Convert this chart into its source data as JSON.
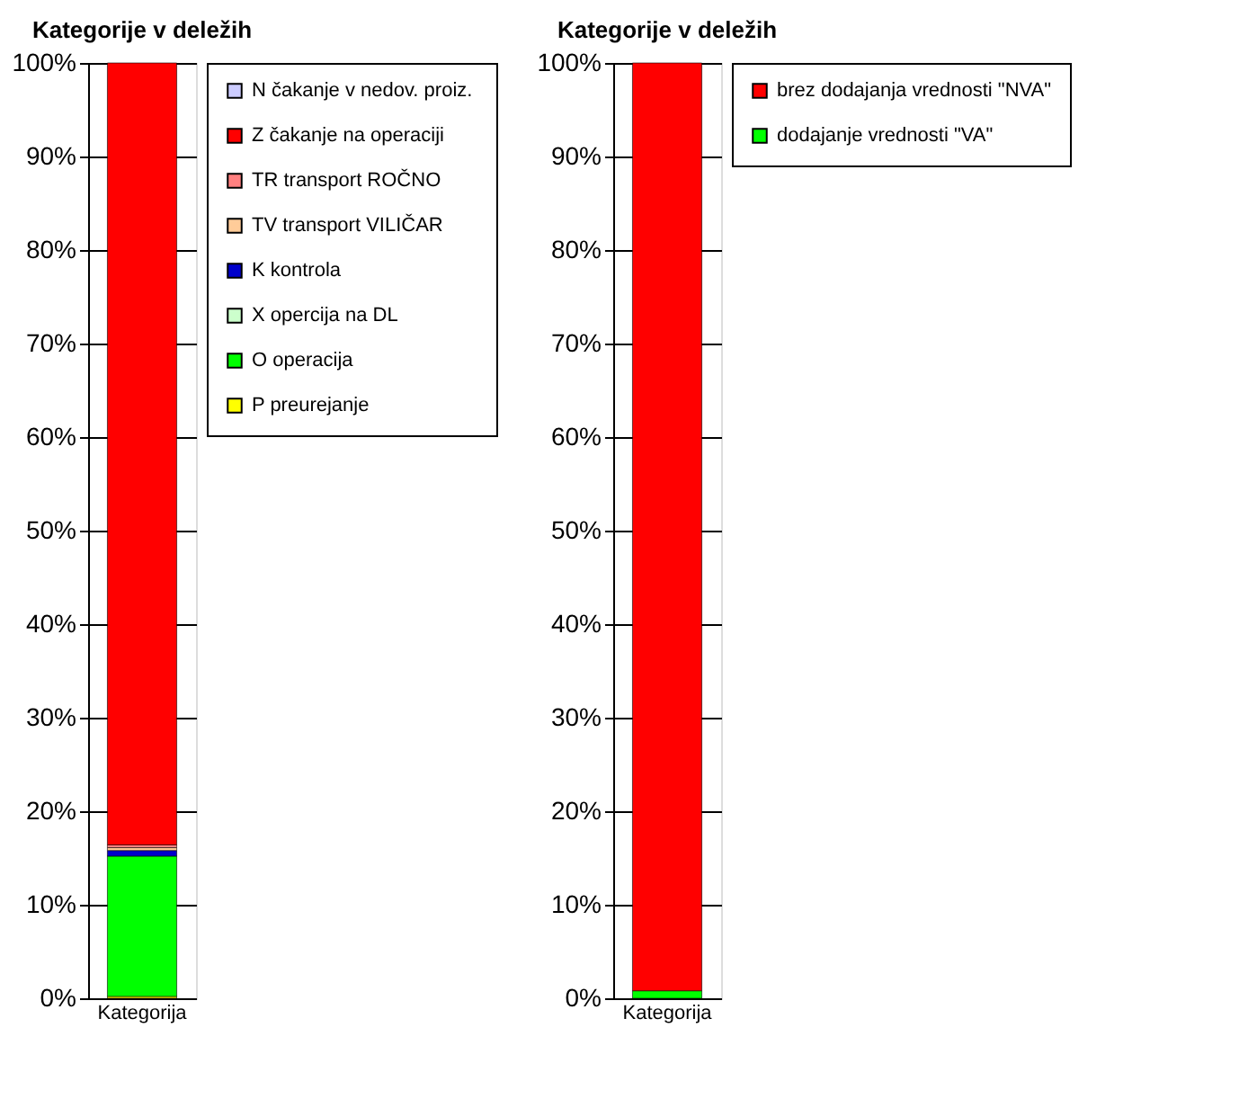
{
  "chart_data": [
    {
      "type": "bar",
      "title": "Kategorije v deležih",
      "categories": [
        "Kategorija"
      ],
      "stacked": true,
      "ylim": [
        0,
        100
      ],
      "yticks": [
        {
          "value": 0,
          "label": "0%"
        },
        {
          "value": 10,
          "label": "10%"
        },
        {
          "value": 20,
          "label": "20%"
        },
        {
          "value": 30,
          "label": "30%"
        },
        {
          "value": 40,
          "label": "40%"
        },
        {
          "value": 50,
          "label": "50%"
        },
        {
          "value": 60,
          "label": "60%"
        },
        {
          "value": 70,
          "label": "70%"
        },
        {
          "value": 80,
          "label": "80%"
        },
        {
          "value": 90,
          "label": "90%"
        },
        {
          "value": 100,
          "label": "100%"
        }
      ],
      "grid": "y",
      "legend": "right",
      "series": [
        {
          "name": "P    preurejanje",
          "color": "#ffff00",
          "values": [
            0.2
          ]
        },
        {
          "name": "O    operacija",
          "color": "#00ff00",
          "values": [
            15.0
          ]
        },
        {
          "name": "X    opercija na DL",
          "color": "#ccffcc",
          "values": [
            null
          ]
        },
        {
          "name": "K    kontrola",
          "color": "#0000cc",
          "values": [
            0.6
          ]
        },
        {
          "name": "TV   transport VILIČAR",
          "color": "#ffcc99",
          "values": [
            0.3
          ]
        },
        {
          "name": "TR   transport ROČNO",
          "color": "#ff8080",
          "values": [
            0.3
          ]
        },
        {
          "name": "Z  čakanje na operaciji",
          "color": "#ff0000",
          "values": [
            83.6
          ]
        },
        {
          "name": "N  čakanje v nedov. proiz.",
          "color": "#ccccff",
          "values": [
            null
          ]
        }
      ]
    },
    {
      "type": "bar",
      "title": "Kategorije v deležih",
      "categories": [
        "Kategorija"
      ],
      "stacked": true,
      "ylim": [
        0,
        100
      ],
      "yticks": [
        {
          "value": 0,
          "label": "0%"
        },
        {
          "value": 10,
          "label": "10%"
        },
        {
          "value": 20,
          "label": "20%"
        },
        {
          "value": 30,
          "label": "30%"
        },
        {
          "value": 40,
          "label": "40%"
        },
        {
          "value": 50,
          "label": "50%"
        },
        {
          "value": 60,
          "label": "60%"
        },
        {
          "value": 70,
          "label": "70%"
        },
        {
          "value": 80,
          "label": "80%"
        },
        {
          "value": 90,
          "label": "90%"
        },
        {
          "value": 100,
          "label": "100%"
        }
      ],
      "grid": "y",
      "legend": "right",
      "series": [
        {
          "name": "dodajanje vrednosti \"VA\"",
          "color": "#00ff00",
          "values": [
            0.8
          ]
        },
        {
          "name": "brez dodajanja vrednosti \"NVA\"",
          "color": "#ff0000",
          "values": [
            99.2
          ]
        }
      ]
    }
  ]
}
